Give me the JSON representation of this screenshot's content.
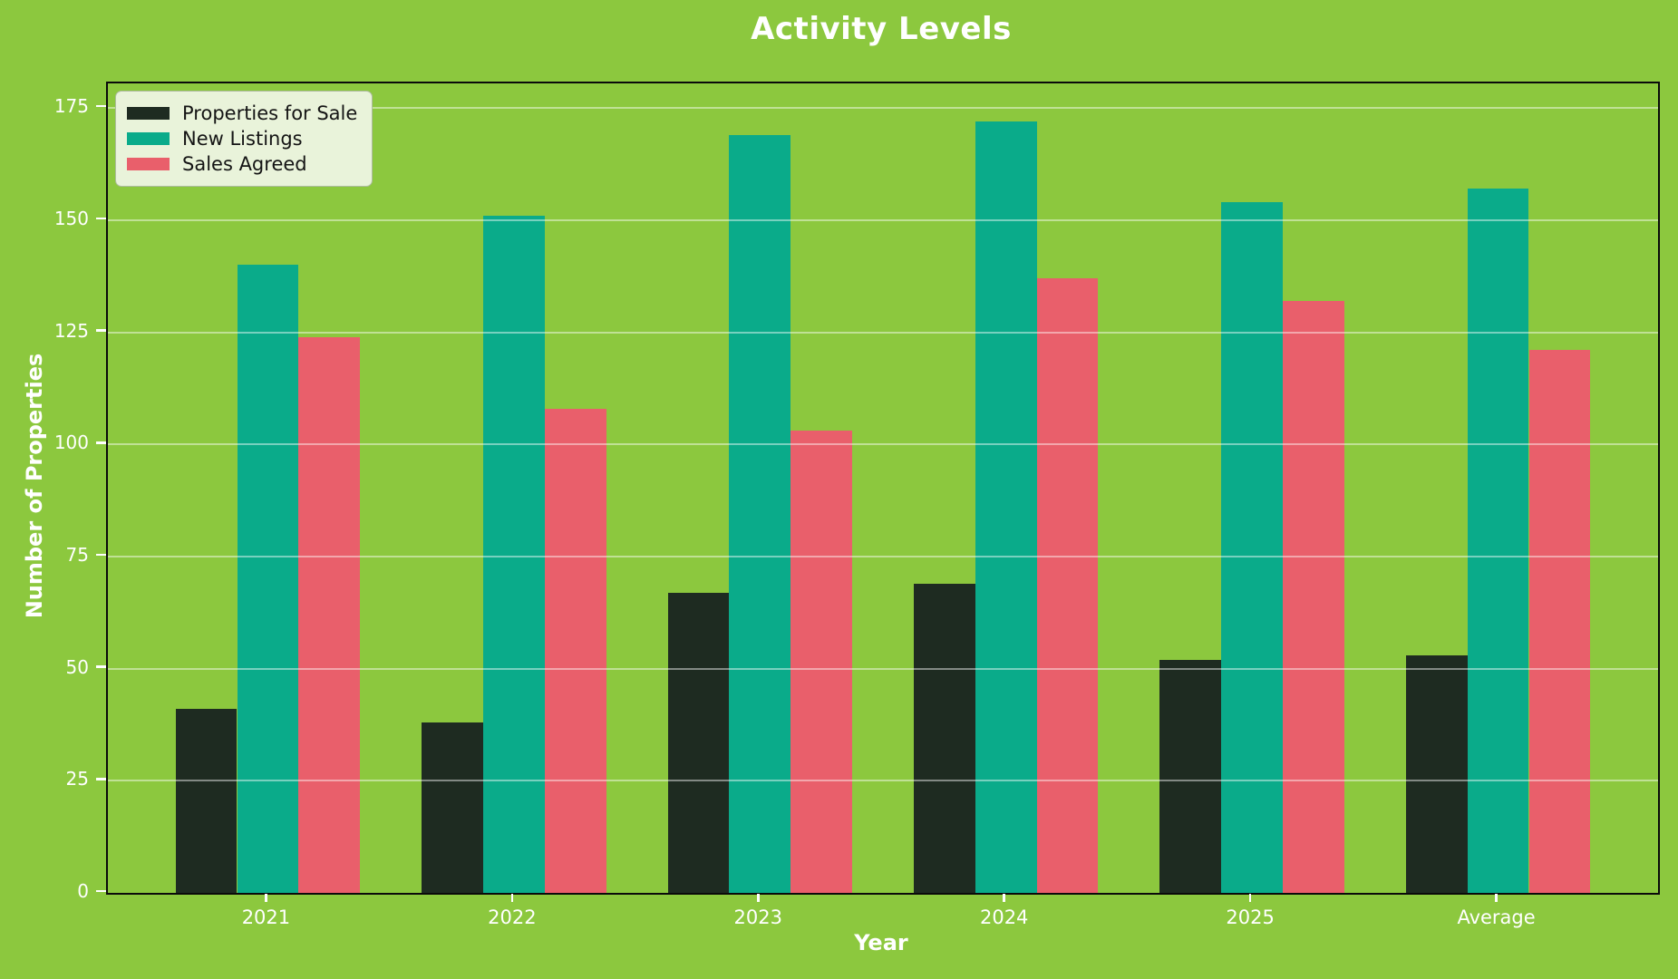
{
  "figure": {
    "background_color": "#8cc83e",
    "text_color": "#ffffff",
    "axis_border_color": "#0a0a0a",
    "grid_color": "rgba(255,255,255,0.45)"
  },
  "legend": {
    "background_color": "#e9f3da",
    "border_color": "#aebba0",
    "text_color": "#141414",
    "position": "upper left"
  },
  "chart_data": {
    "type": "bar",
    "title": "Activity Levels",
    "xlabel": "Year",
    "ylabel": "Number of Properties",
    "categories": [
      "2021",
      "2022",
      "2023",
      "2024",
      "2025",
      "Average"
    ],
    "series": [
      {
        "name": "Properties for Sale",
        "color": "#1e2b21",
        "values": [
          41,
          38,
          67,
          69,
          52,
          53
        ]
      },
      {
        "name": "New Listings",
        "color": "#0aab8a",
        "values": [
          140,
          151,
          169,
          172,
          154,
          157
        ]
      },
      {
        "name": "Sales Agreed",
        "color": "#e95f6b",
        "values": [
          124,
          108,
          103,
          137,
          132,
          121
        ]
      }
    ],
    "yticks": [
      0,
      25,
      50,
      75,
      100,
      125,
      150,
      175
    ],
    "ylim": [
      0,
      180.5
    ],
    "grid": "horizontal",
    "legend_position": "upper left"
  }
}
